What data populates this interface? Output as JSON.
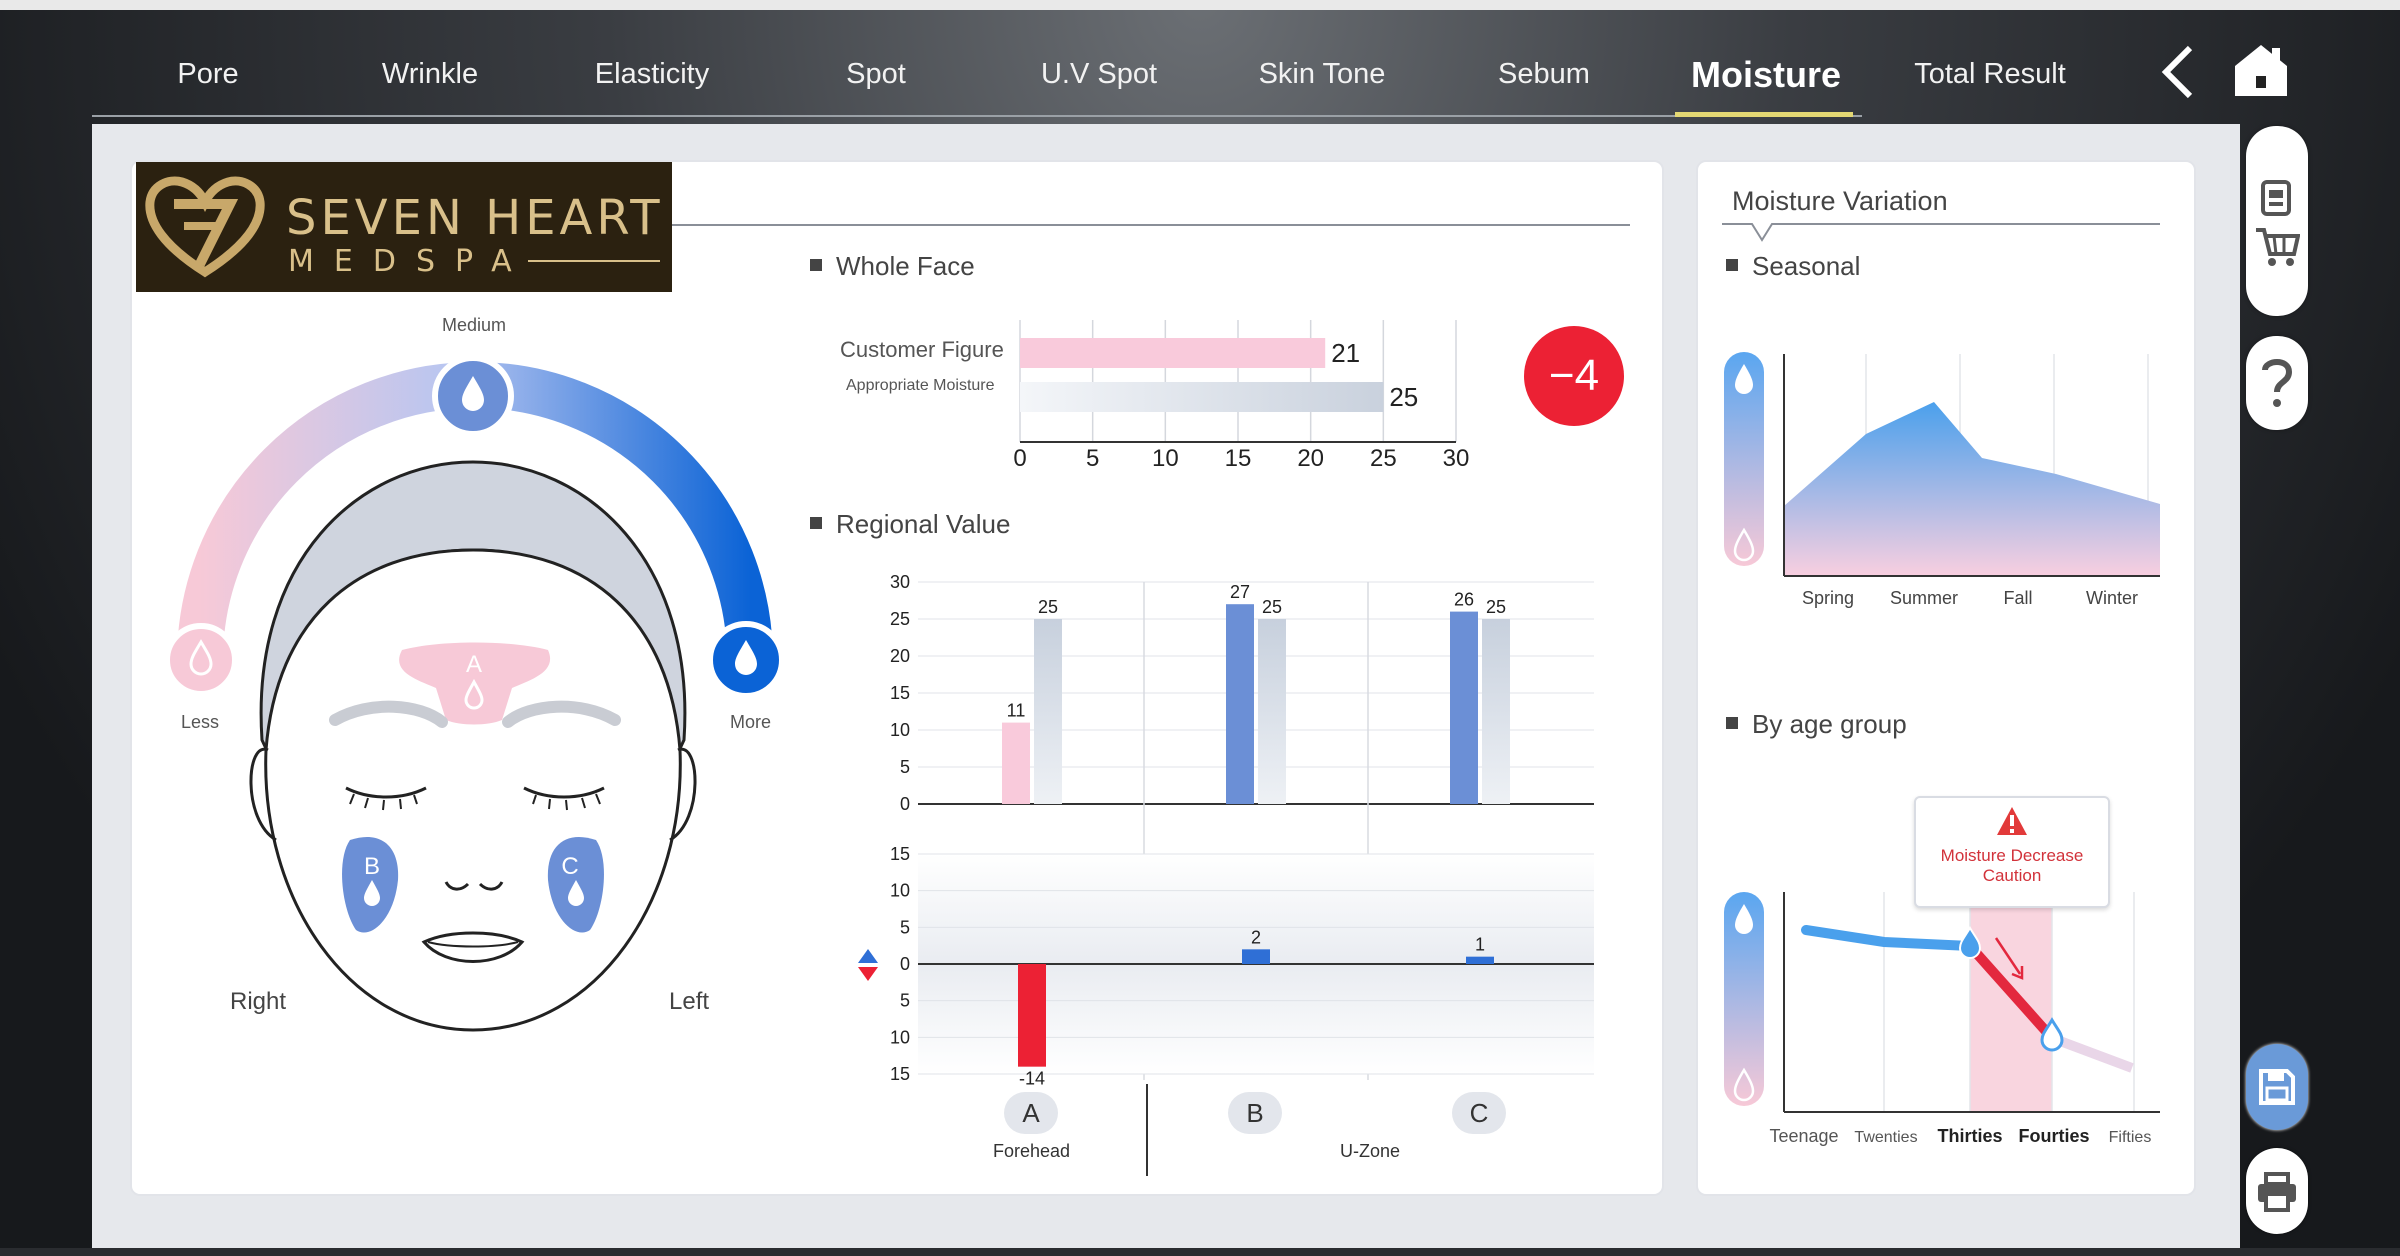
{
  "window": {
    "title_text": ""
  },
  "nav": {
    "items": [
      {
        "label": "Pore"
      },
      {
        "label": "Wrinkle"
      },
      {
        "label": "Elasticity"
      },
      {
        "label": "Spot"
      },
      {
        "label": "U.V Spot"
      },
      {
        "label": "Skin Tone"
      },
      {
        "label": "Sebum"
      },
      {
        "label": "Moisture",
        "active": true
      },
      {
        "label": "Total Result"
      }
    ]
  },
  "logo": {
    "title": "SEVEN HEART",
    "subtitle": "MEDSPA"
  },
  "face_map": {
    "medium": "Medium",
    "less": "Less",
    "more": "More",
    "right": "Right",
    "left": "Left",
    "zone_a": "A",
    "zone_b": "B",
    "zone_c": "C"
  },
  "whole_face": {
    "title": "Whole Face",
    "customer_label": "Customer Figure",
    "appropriate_label": "Appropriate Moisture",
    "customer_value": "21",
    "appropriate_value": "25",
    "difference": "−4"
  },
  "regional": {
    "title": "Regional Value",
    "zone_a": "A",
    "zone_b": "B",
    "zone_c": "C",
    "forehead": "Forehead",
    "uzone": "U-Zone"
  },
  "moisture_variation": {
    "title": "Moisture Variation",
    "seasonal_title": "Seasonal",
    "age_title": "By age group",
    "caution": "Moisture Decrease Caution"
  },
  "colors": {
    "accent_blue": "#6b8fd6",
    "pink": "#f7c9d7",
    "red": "#ec2134",
    "active_underline": "#e4d873"
  },
  "chart_data": [
    {
      "type": "bar",
      "orientation": "horizontal",
      "title": "Whole Face",
      "categories": [
        "Customer Figure",
        "Appropriate Moisture"
      ],
      "values": [
        21,
        25
      ],
      "xlim": [
        0,
        30
      ],
      "xticks": [
        0,
        5,
        10,
        15,
        20,
        25,
        30
      ]
    },
    {
      "type": "bar",
      "title": "Regional Value",
      "categories": [
        "A",
        "B",
        "C"
      ],
      "series": [
        {
          "values": [
            11,
            27,
            26
          ]
        },
        {
          "values": [
            25,
            25,
            25
          ]
        }
      ],
      "ylim": [
        0,
        30
      ],
      "yticks": [
        0,
        5,
        10,
        15,
        20,
        25,
        30
      ]
    },
    {
      "type": "bar",
      "categories": [
        "A",
        "B",
        "C"
      ],
      "values": [
        -14,
        2,
        1
      ],
      "ylim": [
        -15,
        15
      ],
      "ytick_labels": [
        "15",
        "10",
        "5",
        "0",
        "5",
        "10",
        "15"
      ]
    },
    {
      "type": "area",
      "title": "Seasonal",
      "categories": [
        "Spring",
        "Summer",
        "Fall",
        "Winter"
      ]
    },
    {
      "type": "line",
      "title": "By age group",
      "categories": [
        "Teenage",
        "Twenties",
        "Thirties",
        "Fourties",
        "Fifties"
      ]
    }
  ]
}
